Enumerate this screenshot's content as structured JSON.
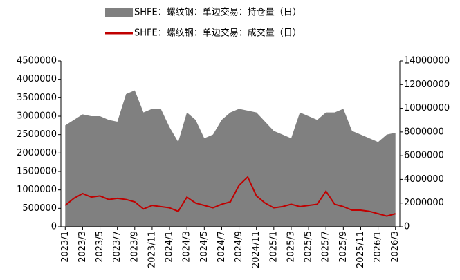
{
  "chart_data": {
    "type": "combo",
    "categories": [
      "2023/1",
      null,
      "2023/3",
      null,
      "2023/5",
      null,
      "2023/7",
      null,
      "2023/9",
      null,
      "2023/11",
      null,
      "2024/1",
      null,
      "2024/3",
      null,
      "2024/5",
      null,
      "2024/7",
      null,
      "2024/9",
      null,
      "2024/11",
      null,
      "2025/1",
      null,
      "2025/3",
      null,
      "2025/5",
      null,
      "2025/7",
      null,
      "2025/9",
      null,
      "2025/11",
      null,
      "2026/1",
      null,
      "2026/3"
    ],
    "series": [
      {
        "name": "SHFE：螺纹钢：单边交易：持仓量（日）",
        "type": "area",
        "color": "#808080",
        "axis": "y",
        "values": [
          2750000,
          2900000,
          3050000,
          3000000,
          3000000,
          2900000,
          2850000,
          3600000,
          3700000,
          3100000,
          3200000,
          3200000,
          2700000,
          2300000,
          3100000,
          2900000,
          2400000,
          2500000,
          2900000,
          3100000,
          3200000,
          3150000,
          3100000,
          2850000,
          2600000,
          2500000,
          2400000,
          3100000,
          3000000,
          2900000,
          3100000,
          3100000,
          3200000,
          2600000,
          2500000,
          2400000,
          2300000,
          2500000,
          2550000
        ]
      },
      {
        "name": "SHFE：螺纹钢：单边交易：成交量（日）",
        "type": "line",
        "color": "#c00000",
        "axis": "y2",
        "values": [
          1800000,
          2400000,
          2800000,
          2500000,
          2600000,
          2300000,
          2400000,
          2300000,
          2100000,
          1500000,
          1800000,
          1700000,
          1600000,
          1300000,
          2500000,
          2000000,
          1800000,
          1600000,
          1900000,
          2100000,
          3500000,
          4200000,
          2600000,
          2000000,
          1600000,
          1700000,
          1900000,
          1700000,
          1800000,
          1900000,
          3000000,
          1900000,
          1700000,
          1400000,
          1400000,
          1300000,
          1100000,
          900000,
          1100000
        ]
      }
    ],
    "ylim": [
      0,
      4500000
    ],
    "yticks": [
      0,
      500000,
      1000000,
      1500000,
      2000000,
      2500000,
      3000000,
      3500000,
      4000000,
      4500000
    ],
    "y2lim": [
      0,
      14000000
    ],
    "y2ticks": [
      0,
      2000000,
      4000000,
      6000000,
      8000000,
      10000000,
      12000000,
      14000000
    ]
  }
}
